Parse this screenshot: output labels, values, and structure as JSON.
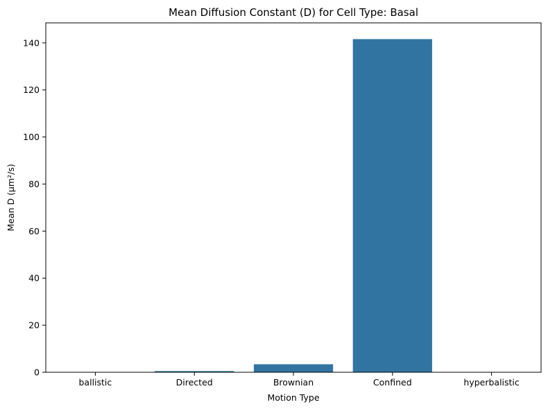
{
  "chart_data": {
    "type": "bar",
    "title": "Mean Diffusion Constant (D) for Cell Type: Basal",
    "xlabel": "Motion Type",
    "ylabel": "Mean D (µm²/s)",
    "categories": [
      "ballistic",
      "Directed",
      "Brownian",
      "Confined",
      "hyperbalistic"
    ],
    "values": [
      0,
      0.5,
      3.4,
      141.6,
      0
    ],
    "ylim": [
      0,
      148.5
    ],
    "yticks": [
      0,
      20,
      40,
      60,
      80,
      100,
      120,
      140
    ],
    "ytick_labels": [
      "0",
      "20",
      "40",
      "60",
      "80",
      "100",
      "120",
      "140"
    ],
    "grid": false,
    "legend": "none",
    "bar_color": "#3274a1"
  }
}
